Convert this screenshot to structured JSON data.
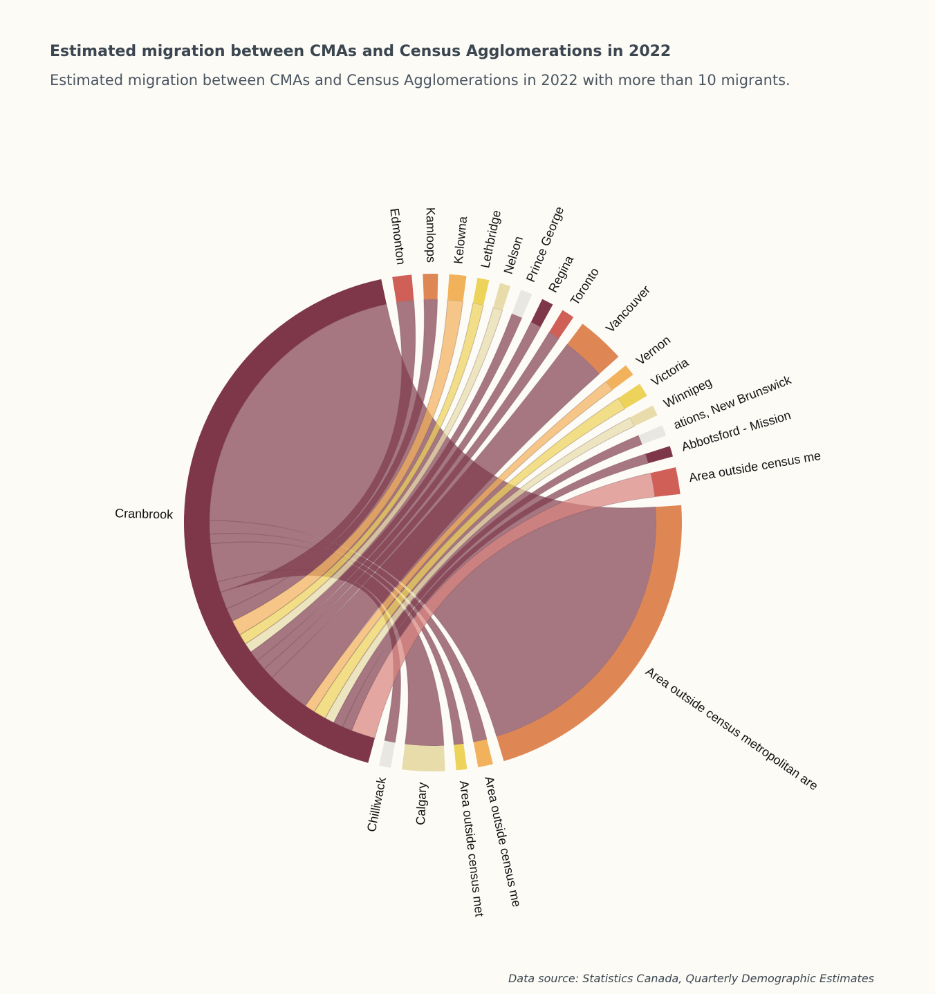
{
  "title": "Estimated migration between CMAs and Census Agglomerations in 2022",
  "subtitle": "Estimated migration between CMAs and Census Agglomerations in 2022 with more than 10 migrants.",
  "source": "Data source: Statistics Canada, Quarterly Demographic Estimates",
  "chart_data": {
    "type": "chord",
    "title": "Estimated migration between CMAs and Census Agglomerations in 2022",
    "subtitle": "Estimated migration between CMAs and Census Agglomerations in 2022 with more than 10 migrants.",
    "focus_node": "Cranbrook",
    "nodes": [
      {
        "name": "Area outside census metropolitan areas",
        "label": "Area outside census metropolitan are",
        "color": "#de8654",
        "flow": 310
      },
      {
        "name": "Area outside census metropolitan areas (2)",
        "label": "Area outside census me",
        "color": "#f2b25c",
        "flow": 14
      },
      {
        "name": "Area outside census metropolitan areas (3)",
        "label": "Area outside census met",
        "color": "#edd35a",
        "flow": 10
      },
      {
        "name": "Calgary",
        "label": "Calgary",
        "color": "#e8dcaa",
        "flow": 40
      },
      {
        "name": "Chilliwack",
        "label": "Chilliwack",
        "color": "#e9e7e2",
        "flow": 11
      },
      {
        "name": "Cranbrook",
        "label": "Cranbrook",
        "color": "#7e3649",
        "flow": 0
      },
      {
        "name": "Edmonton",
        "label": "Edmonton",
        "color": "#cf5f57",
        "flow": 18
      },
      {
        "name": "Kamloops",
        "label": "Kamloops",
        "color": "#de8654",
        "flow": 14
      },
      {
        "name": "Kelowna",
        "label": "Kelowna",
        "color": "#f2b25c",
        "flow": 16
      },
      {
        "name": "Lethbridge",
        "label": "Lethbridge",
        "color": "#edd35a",
        "flow": 11
      },
      {
        "name": "Nelson",
        "label": "Nelson",
        "color": "#e8dcaa",
        "flow": 10
      },
      {
        "name": "Prince George",
        "label": "Prince George",
        "color": "#e9e7e2",
        "flow": 11
      },
      {
        "name": "Regina",
        "label": "Regina",
        "color": "#7e3649",
        "flow": 11
      },
      {
        "name": "Toronto",
        "label": "Toronto",
        "color": "#cf5f57",
        "flow": 12
      },
      {
        "name": "Vancouver",
        "label": "Vancouver",
        "color": "#de8654",
        "flow": 45
      },
      {
        "name": "Vernon",
        "label": "Vernon",
        "color": "#f2b25c",
        "flow": 11
      },
      {
        "name": "Victoria",
        "label": "Victoria",
        "color": "#edd35a",
        "flow": 13
      },
      {
        "name": "Winnipeg",
        "label": "Winnipeg",
        "color": "#e8dcaa",
        "flow": 10
      },
      {
        "name": "Area outside census metropolitan areas, New Brunswick",
        "label": "ations, New Brunswick",
        "color": "#e9e7e2",
        "flow": 10
      },
      {
        "name": "Abbotsford - Mission",
        "label": "Abbotsford - Mission",
        "color": "#7e3649",
        "flow": 10
      },
      {
        "name": "Area outside census metropolitan areas (4)",
        "label": "Area outside census me",
        "color": "#cf5f57",
        "flow": 25
      }
    ]
  }
}
